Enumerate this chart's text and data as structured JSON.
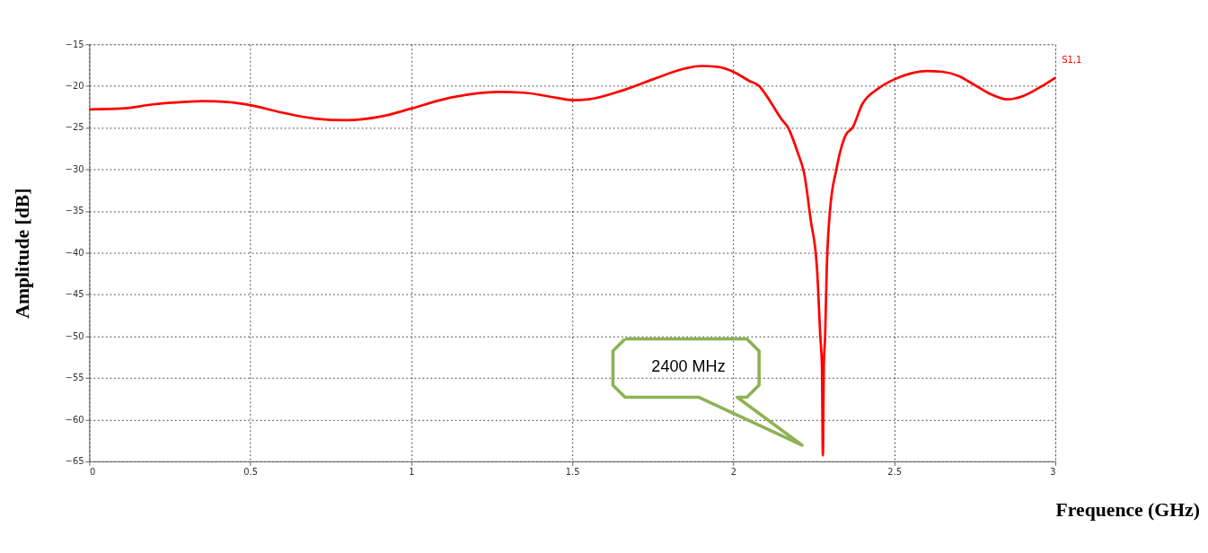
{
  "chart_data": {
    "type": "line",
    "xlabel": "Frequence (GHz)",
    "ylabel": "Amplitude  [dB]",
    "xlim": [
      0,
      3
    ],
    "xticks": [
      0,
      0.5,
      1,
      1.5,
      2,
      2.5,
      3
    ],
    "ylim": [
      -65,
      -15
    ],
    "yticks": [
      -65,
      -60,
      -55,
      -50,
      -45,
      -40,
      -35,
      -30,
      -25,
      -20,
      -15
    ],
    "grid": true,
    "legend": "top right",
    "marker": "none",
    "line_style": "solid",
    "series": [
      {
        "name": "S1,1",
        "color": "#ff0000",
        "x": [
          0,
          0.1,
          0.2,
          0.3,
          0.35,
          0.45,
          0.5,
          0.6,
          0.7,
          0.8,
          0.9,
          1.0,
          1.1,
          1.2,
          1.27,
          1.35,
          1.45,
          1.5,
          1.55,
          1.65,
          1.75,
          1.85,
          1.9,
          1.95,
          2.0,
          2.05,
          2.08,
          2.1,
          2.15,
          2.17,
          2.2,
          2.22,
          2.24,
          2.26,
          2.27,
          2.275,
          2.278,
          2.281,
          2.285,
          2.29,
          2.3,
          2.32,
          2.35,
          2.37,
          2.4,
          2.45,
          2.5,
          2.55,
          2.6,
          2.65,
          2.7,
          2.75,
          2.8,
          2.85,
          2.9,
          2.95,
          3.0
        ],
        "values": [
          -22.8,
          -22.7,
          -22.2,
          -21.9,
          -21.8,
          -22.0,
          -22.3,
          -23.2,
          -23.9,
          -24.1,
          -23.7,
          -22.7,
          -21.6,
          -20.9,
          -20.7,
          -20.8,
          -21.4,
          -21.7,
          -21.6,
          -20.6,
          -19.2,
          -17.9,
          -17.6,
          -17.7,
          -18.3,
          -19.4,
          -20.0,
          -21.0,
          -24.0,
          -25.0,
          -28.0,
          -30.5,
          -36.0,
          -42.0,
          -50.0,
          -53.5,
          -64.3,
          -53.5,
          -50.0,
          -42.0,
          -35.0,
          -30.0,
          -25.8,
          -25.0,
          -22.2,
          -20.3,
          -19.2,
          -18.5,
          -18.2,
          -18.3,
          -18.8,
          -19.9,
          -21.0,
          -21.6,
          -21.2,
          -20.2,
          -19.0
        ]
      }
    ],
    "annotations": [
      "2400 MHz"
    ]
  }
}
